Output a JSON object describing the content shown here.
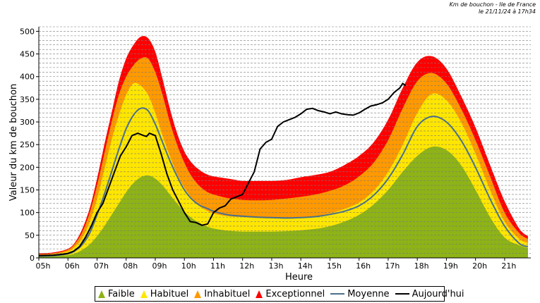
{
  "header": {
    "line1": "Km de bouchon - Ile de France",
    "line2": "le 21/11/24 à 17h34"
  },
  "chart_data": {
    "type": "area",
    "title": "Km de bouchon - Ile de France",
    "xlabel": "Heure",
    "ylabel": "Valeur du  km de bouchon",
    "xlim": [
      5,
      21.9
    ],
    "ylim": [
      0,
      510
    ],
    "yticks": [
      0,
      50,
      100,
      150,
      200,
      250,
      300,
      350,
      400,
      450,
      500
    ],
    "xtick_labels": [
      "05h",
      "06h",
      "07h",
      "08h",
      "09h",
      "10h",
      "11h",
      "12h",
      "13h",
      "14h",
      "15h",
      "16h",
      "17h",
      "18h",
      "19h",
      "20h",
      "21h"
    ],
    "x": [
      5,
      5.5,
      6,
      6.25,
      6.5,
      6.75,
      7,
      7.25,
      7.5,
      7.75,
      8,
      8.25,
      8.5,
      8.75,
      9,
      9.25,
      9.5,
      9.75,
      10,
      10.25,
      10.5,
      10.75,
      11,
      11.5,
      12,
      12.5,
      13,
      13.5,
      14,
      14.5,
      15,
      15.5,
      16,
      16.5,
      17,
      17.5,
      18,
      18.5,
      19,
      19.5,
      20,
      20.5,
      21,
      21.5,
      21.8
    ],
    "series": [
      {
        "name": "Faible",
        "color": "#8db317",
        "values": [
          3,
          4,
          6,
          10,
          18,
          30,
          48,
          70,
          95,
          120,
          145,
          165,
          178,
          182,
          175,
          160,
          140,
          120,
          102,
          88,
          78,
          70,
          65,
          60,
          58,
          58,
          58,
          59,
          61,
          64,
          70,
          80,
          95,
          118,
          150,
          190,
          225,
          245,
          238,
          205,
          150,
          90,
          45,
          28,
          22
        ]
      },
      {
        "name": "Habituel",
        "color": "#ffe600",
        "values": [
          6,
          8,
          14,
          25,
          45,
          80,
          130,
          195,
          260,
          315,
          360,
          385,
          380,
          360,
          320,
          270,
          225,
          185,
          155,
          132,
          115,
          105,
          98,
          92,
          90,
          88,
          87,
          87,
          88,
          92,
          98,
          108,
          122,
          148,
          190,
          250,
          320,
          362,
          348,
          300,
          230,
          150,
          80,
          42,
          33
        ]
      },
      {
        "name": "Inhabituel",
        "color": "#ff9900",
        "values": [
          8,
          10,
          18,
          32,
          58,
          100,
          160,
          230,
          300,
          360,
          400,
          425,
          440,
          440,
          410,
          360,
          300,
          250,
          210,
          180,
          160,
          147,
          140,
          132,
          128,
          127,
          128,
          131,
          135,
          140,
          148,
          160,
          180,
          210,
          260,
          330,
          390,
          408,
          385,
          330,
          260,
          180,
          100,
          55,
          42
        ]
      },
      {
        "name": "Exceptionnel",
        "color": "#ff0000",
        "values": [
          10,
          12,
          20,
          35,
          65,
          110,
          175,
          250,
          320,
          390,
          440,
          470,
          488,
          485,
          455,
          395,
          330,
          275,
          235,
          210,
          195,
          185,
          180,
          175,
          170,
          170,
          170,
          172,
          178,
          183,
          190,
          205,
          225,
          255,
          305,
          375,
          432,
          445,
          418,
          358,
          288,
          205,
          125,
          65,
          48
        ]
      }
    ],
    "moyenne": {
      "name": "Moyenne",
      "color": "#4a708b",
      "x": [
        5,
        5.5,
        6,
        6.25,
        6.5,
        6.75,
        7,
        7.25,
        7.5,
        7.75,
        8,
        8.25,
        8.5,
        8.75,
        9,
        9.25,
        9.5,
        9.75,
        10,
        10.25,
        10.5,
        10.75,
        11,
        11.5,
        12,
        12.5,
        13,
        13.5,
        14,
        14.5,
        15,
        15.5,
        16,
        16.5,
        17,
        17.5,
        18,
        18.5,
        19,
        19.5,
        20,
        20.5,
        21,
        21.5,
        21.8
      ],
      "values": [
        4,
        5,
        9,
        16,
        30,
        55,
        95,
        140,
        190,
        240,
        285,
        315,
        330,
        325,
        295,
        255,
        215,
        180,
        150,
        130,
        117,
        110,
        103,
        95,
        92,
        90,
        89,
        88,
        89,
        91,
        96,
        103,
        115,
        138,
        175,
        228,
        290,
        312,
        300,
        260,
        200,
        130,
        70,
        32,
        25
      ]
    },
    "aujourdhui": {
      "name": "Aujourd'hui",
      "color": "#000000",
      "x": [
        5,
        5.5,
        5.8,
        6,
        6.2,
        6.4,
        6.6,
        6.8,
        7,
        7.2,
        7.4,
        7.6,
        7.8,
        8,
        8.2,
        8.4,
        8.6,
        8.7,
        8.8,
        9,
        9.2,
        9.4,
        9.6,
        9.8,
        10,
        10.2,
        10.4,
        10.6,
        10.8,
        11,
        11.2,
        11.4,
        11.6,
        11.8,
        12,
        12.2,
        12.4,
        12.6,
        12.8,
        13,
        13.2,
        13.4,
        13.6,
        13.8,
        14,
        14.2,
        14.4,
        14.6,
        14.8,
        15,
        15.2,
        15.4,
        15.6,
        15.8,
        16,
        16.2,
        16.4,
        16.6,
        16.8,
        17,
        17.2,
        17.4,
        17.5,
        17.6
      ],
      "values": [
        5,
        6,
        8,
        10,
        15,
        25,
        45,
        70,
        100,
        120,
        155,
        190,
        225,
        245,
        270,
        275,
        270,
        268,
        275,
        270,
        230,
        185,
        150,
        125,
        100,
        80,
        78,
        72,
        75,
        100,
        110,
        115,
        130,
        135,
        140,
        165,
        190,
        240,
        255,
        262,
        290,
        300,
        305,
        310,
        318,
        328,
        330,
        325,
        322,
        318,
        322,
        318,
        316,
        315,
        320,
        328,
        335,
        338,
        342,
        350,
        365,
        375,
        385,
        380
      ]
    }
  },
  "legend": {
    "faible": "Faible",
    "habituel": "Habituel",
    "inhabituel": "Inhabituel",
    "exceptionnel": "Exceptionnel",
    "moyenne": "Moyenne",
    "aujourdhui": "Aujourd'hui"
  }
}
